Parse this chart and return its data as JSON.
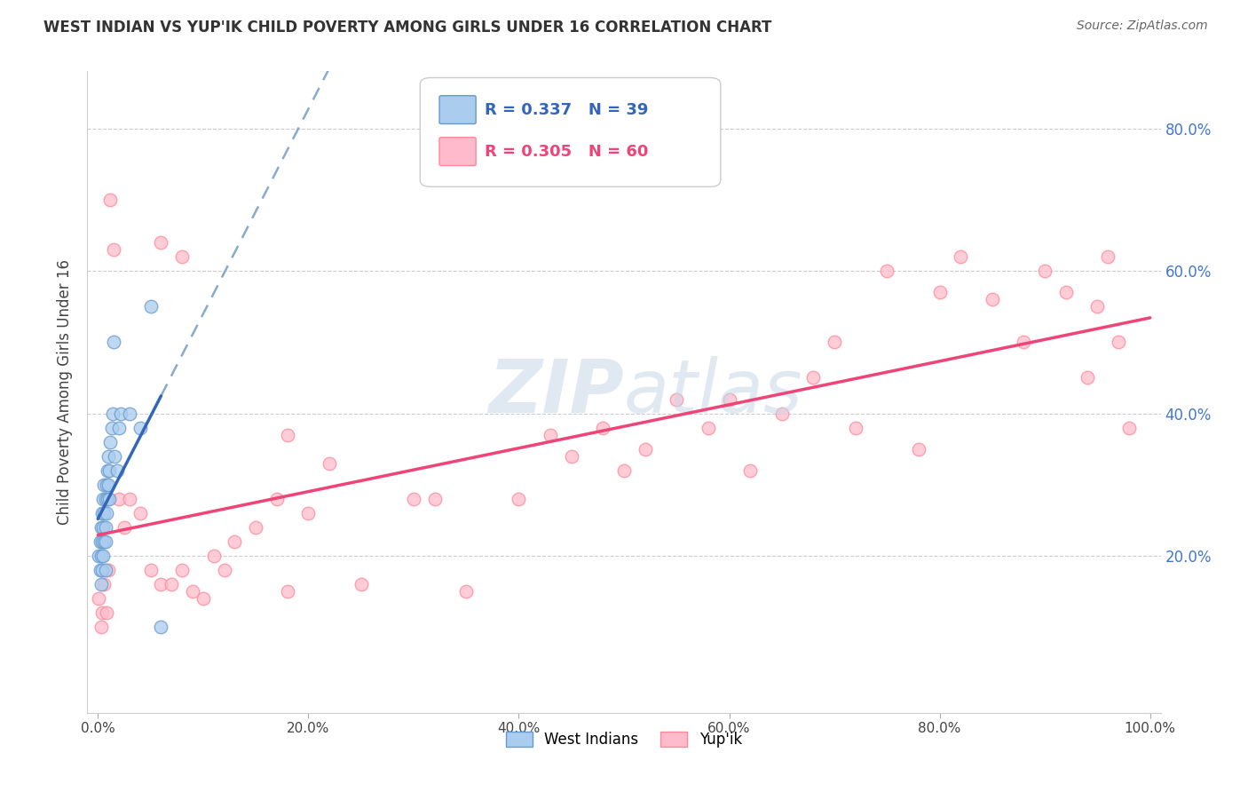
{
  "title": "WEST INDIAN VS YUP'IK CHILD POVERTY AMONG GIRLS UNDER 16 CORRELATION CHART",
  "source": "Source: ZipAtlas.com",
  "ylabel": "Child Poverty Among Girls Under 16",
  "west_indians": {
    "x": [
      0.001,
      0.002,
      0.002,
      0.003,
      0.003,
      0.003,
      0.004,
      0.004,
      0.004,
      0.005,
      0.005,
      0.005,
      0.006,
      0.006,
      0.006,
      0.007,
      0.007,
      0.007,
      0.007,
      0.008,
      0.008,
      0.009,
      0.009,
      0.01,
      0.01,
      0.011,
      0.011,
      0.012,
      0.013,
      0.014,
      0.015,
      0.016,
      0.018,
      0.02,
      0.022,
      0.03,
      0.04,
      0.05,
      0.06
    ],
    "y": [
      0.2,
      0.22,
      0.18,
      0.24,
      0.2,
      0.16,
      0.26,
      0.22,
      0.18,
      0.28,
      0.24,
      0.2,
      0.3,
      0.26,
      0.22,
      0.28,
      0.24,
      0.22,
      0.18,
      0.3,
      0.26,
      0.32,
      0.28,
      0.34,
      0.3,
      0.32,
      0.28,
      0.36,
      0.38,
      0.4,
      0.5,
      0.34,
      0.32,
      0.38,
      0.4,
      0.4,
      0.38,
      0.55,
      0.1
    ],
    "label": "West Indians",
    "R": 0.337,
    "N": 39,
    "dot_color": "#AACCEE",
    "dot_edge_color": "#6699CC",
    "line_color": "#3366BB",
    "line_color_dashed": "#88AACC"
  },
  "yupik": {
    "x": [
      0.001,
      0.003,
      0.004,
      0.006,
      0.008,
      0.01,
      0.012,
      0.015,
      0.02,
      0.025,
      0.03,
      0.04,
      0.05,
      0.06,
      0.07,
      0.08,
      0.09,
      0.1,
      0.11,
      0.12,
      0.13,
      0.15,
      0.17,
      0.18,
      0.2,
      0.25,
      0.3,
      0.32,
      0.35,
      0.4,
      0.43,
      0.45,
      0.48,
      0.5,
      0.52,
      0.55,
      0.58,
      0.6,
      0.62,
      0.65,
      0.68,
      0.7,
      0.72,
      0.75,
      0.78,
      0.8,
      0.82,
      0.85,
      0.88,
      0.9,
      0.92,
      0.94,
      0.95,
      0.96,
      0.97,
      0.98,
      0.06,
      0.08,
      0.18,
      0.22
    ],
    "y": [
      0.14,
      0.1,
      0.12,
      0.16,
      0.12,
      0.18,
      0.7,
      0.63,
      0.28,
      0.24,
      0.28,
      0.26,
      0.18,
      0.16,
      0.16,
      0.18,
      0.15,
      0.14,
      0.2,
      0.18,
      0.22,
      0.24,
      0.28,
      0.15,
      0.26,
      0.16,
      0.28,
      0.28,
      0.15,
      0.28,
      0.37,
      0.34,
      0.38,
      0.32,
      0.35,
      0.42,
      0.38,
      0.42,
      0.32,
      0.4,
      0.45,
      0.5,
      0.38,
      0.6,
      0.35,
      0.57,
      0.62,
      0.56,
      0.5,
      0.6,
      0.57,
      0.45,
      0.55,
      0.62,
      0.5,
      0.38,
      0.64,
      0.62,
      0.37,
      0.33
    ],
    "label": "Yup'ik",
    "R": 0.305,
    "N": 60,
    "dot_color": "#FFBBCC",
    "dot_edge_color": "#FF8899",
    "line_color": "#EE4477"
  },
  "xlim": [
    -0.01,
    1.01
  ],
  "ylim": [
    -0.02,
    0.88
  ],
  "xticks": [
    0.0,
    0.2,
    0.4,
    0.6,
    0.8,
    1.0
  ],
  "yticks": [
    0.0,
    0.2,
    0.4,
    0.6,
    0.8
  ],
  "xticklabels": [
    "0.0%",
    "20.0%",
    "40.0%",
    "60.0%",
    "80.0%",
    "100.0%"
  ],
  "right_yticklabels": [
    "",
    "20.0%",
    "40.0%",
    "60.0%",
    "80.0%"
  ],
  "right_ytick_color": "#4477CC",
  "background_color": "#FFFFFF",
  "watermark_color": "#C8D8E8"
}
